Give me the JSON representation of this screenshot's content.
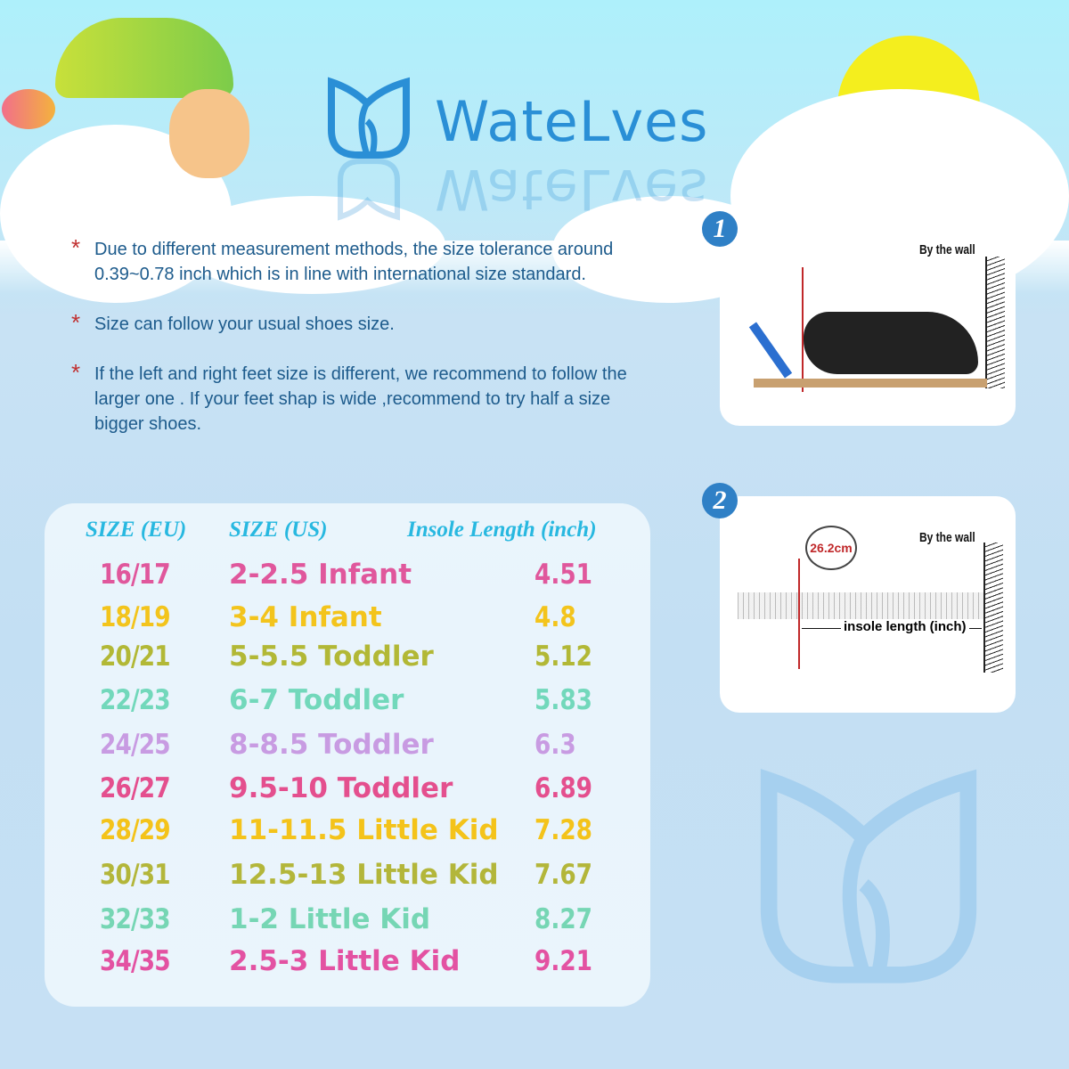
{
  "brand": {
    "name": "WateLves",
    "color": "#2a8fd6"
  },
  "notes": [
    "Due to different measurement methods,  the size tolerance around  0.39~0.78 inch which is in line with international size standard.",
    "Size can follow your usual shoes size.",
    "If the left and right feet size is different,  we recommend to follow the larger one . If your feet shap is wide ,recommend to try half a size bigger shoes."
  ],
  "note_marker": "*",
  "table": {
    "headers": [
      "SIZE (EU)",
      "SIZE (US)",
      "Insole Length (inch)"
    ],
    "rows": [
      {
        "eu": "16/17",
        "us": "2-2.5 Infant",
        "inch": "4.51",
        "color": "#e0579c"
      },
      {
        "eu": "18/19",
        "us": "3-4 Infant",
        "inch": "4.8",
        "color": "#f3c41c"
      },
      {
        "eu": "20/21",
        "us": "5-5.5 Toddler",
        "inch": "5.12",
        "color": "#b2b836"
      },
      {
        "eu": "22/23",
        "us": "6-7 Toddler",
        "inch": "5.83",
        "color": "#72d8bb"
      },
      {
        "eu": "24/25",
        "us": "8-8.5 Toddler",
        "inch": "6.3",
        "color": "#c89be2"
      },
      {
        "eu": "26/27",
        "us": "9.5-10 Toddler",
        "inch": "6.89",
        "color": "#e44f8e"
      },
      {
        "eu": "28/29",
        "us": "11-11.5 Little Kid",
        "inch": "7.28",
        "color": "#f4c31a"
      },
      {
        "eu": "30/31",
        "us": "12.5-13 Little Kid",
        "inch": "7.67",
        "color": "#b3b63a"
      },
      {
        "eu": "32/33",
        "us": "1-2 Little Kid",
        "inch": "8.27",
        "color": "#76d6b4"
      },
      {
        "eu": "34/35",
        "us": "2.5-3 Little Kid",
        "inch": "9.21",
        "color": "#e352a2"
      }
    ]
  },
  "steps": [
    {
      "number": "1",
      "wall_label": "By the wall"
    },
    {
      "number": "2",
      "wall_label": "By the wall",
      "measurement": "26.2cm",
      "ruler_label": "insole length (inch)"
    }
  ]
}
